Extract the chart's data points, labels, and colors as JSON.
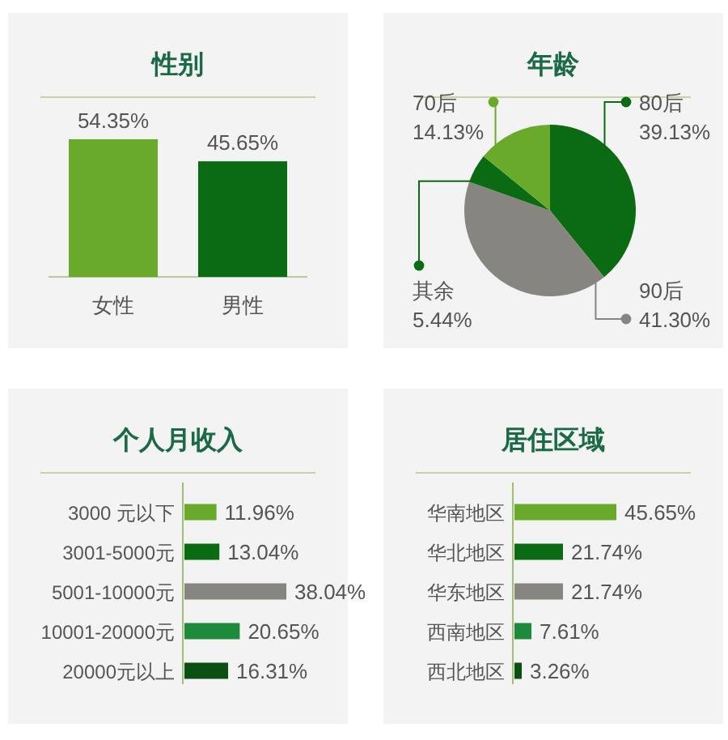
{
  "chart_data": [
    {
      "type": "bar",
      "title": "性别",
      "categories": [
        "女性",
        "男性"
      ],
      "values": [
        54.35,
        45.65
      ],
      "colors": [
        "#6aaa2a",
        "#0a6b12"
      ],
      "value_labels": [
        "54.35%",
        "45.65%"
      ]
    },
    {
      "type": "pie",
      "title": "年龄",
      "categories": [
        "80后",
        "90后",
        "其余",
        "70后"
      ],
      "values": [
        39.13,
        41.3,
        5.44,
        14.13
      ],
      "colors": [
        "#0a6b12",
        "#878580",
        "#0a6b12",
        "#6aaa2a"
      ],
      "value_labels": [
        "39.13%",
        "41.30%",
        "5.44%",
        "14.13%"
      ]
    },
    {
      "type": "bar",
      "orientation": "horizontal",
      "title": "个人月收入",
      "categories": [
        "3000 元以下",
        "3001-5000元",
        "5001-10000元",
        "10001-20000元",
        "20000元以上"
      ],
      "values": [
        11.96,
        13.04,
        38.04,
        20.65,
        16.31
      ],
      "colors": [
        "#6aaa2a",
        "#0a6b12",
        "#878580",
        "#1e8a3c",
        "#0b4f12"
      ],
      "value_labels": [
        "11.96%",
        "13.04%",
        "38.04%",
        "20.65%",
        "16.31%"
      ]
    },
    {
      "type": "bar",
      "orientation": "horizontal",
      "title": "居住区域",
      "categories": [
        "华南地区",
        "华北地区",
        "华东地区",
        "西南地区",
        "西北地区"
      ],
      "values": [
        45.65,
        21.74,
        21.74,
        7.61,
        3.26
      ],
      "colors": [
        "#6aaa2a",
        "#0a6b12",
        "#878580",
        "#1e8a3c",
        "#0b4f12"
      ],
      "value_labels": [
        "45.65%",
        "21.74%",
        "21.74%",
        "7.61%",
        "3.26%"
      ]
    }
  ]
}
